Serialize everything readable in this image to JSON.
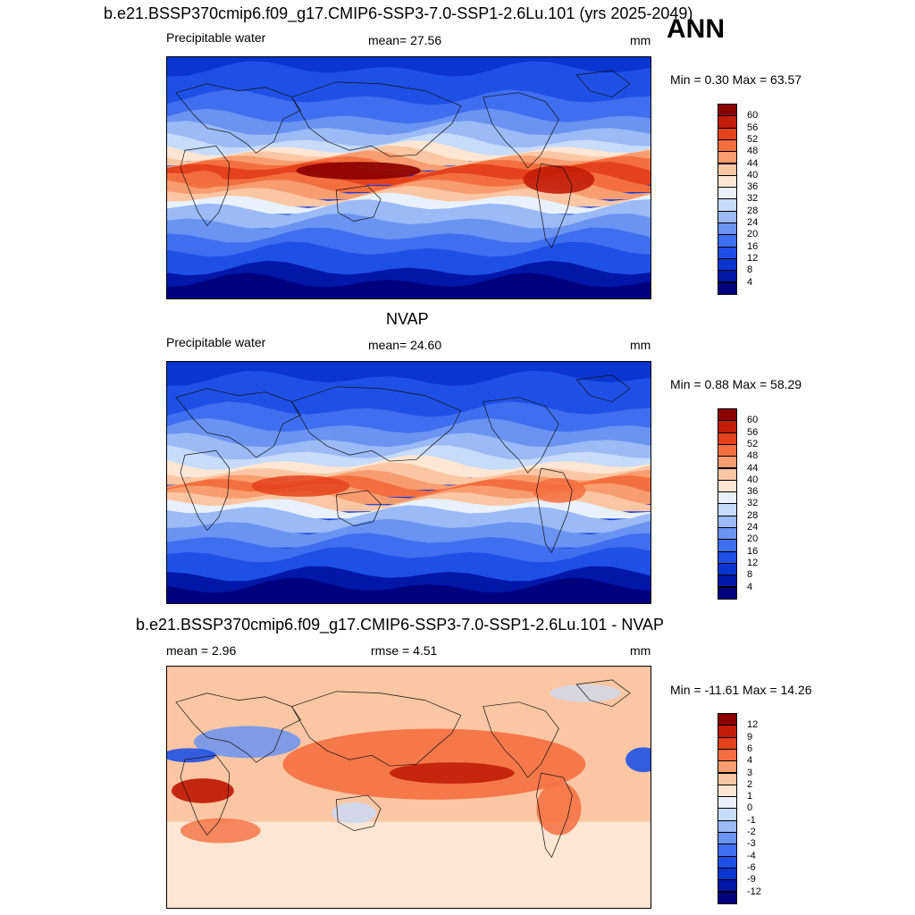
{
  "season": "ANN",
  "panels": [
    {
      "title": "b.e21.BSSP370cmip6.f09_g17.CMIP6-SSP3-7.0-SSP1-2.6Lu.101 (yrs 2025-2049)",
      "left_label": "Precipitable water",
      "center_label": "mean=  27.56",
      "units": "mm",
      "minmax": "Min =   0.30 Max =  63.57"
    },
    {
      "title": "NVAP",
      "left_label": "Precipitable water",
      "center_label": "mean=  24.60",
      "units": "mm",
      "minmax": "Min =   0.88 Max =  58.29"
    },
    {
      "title": "b.e21.BSSP370cmip6.f09_g17.CMIP6-SSP3-7.0-SSP1-2.6Lu.101 - NVAP",
      "left_label": "mean =   2.96",
      "center_label": "rmse =   4.51",
      "units": "mm",
      "minmax": "Min = -11.61 Max =  14.26"
    }
  ],
  "chart_data": [
    {
      "type": "heatmap",
      "title": "b.e21.BSSP370cmip6.f09_g17.CMIP6-SSP3-7.0-SSP1-2.6Lu.101 (yrs 2025-2049)",
      "variable": "Precipitable water",
      "units": "mm",
      "mean": 27.56,
      "min": 0.3,
      "max": 63.57,
      "levels": [
        4,
        8,
        12,
        16,
        20,
        24,
        28,
        32,
        36,
        40,
        44,
        48,
        52,
        56,
        60
      ],
      "colors": [
        "#00007f",
        "#0017a8",
        "#0a35d0",
        "#1e50e6",
        "#3f6ef0",
        "#6a93f2",
        "#9bbaf6",
        "#c7dbfa",
        "#e8f1fd",
        "#fde6d4",
        "#fbc6a3",
        "#f89d70",
        "#f46f40",
        "#e4421c",
        "#c21d08",
        "#8a0000"
      ]
    },
    {
      "type": "heatmap",
      "title": "NVAP",
      "variable": "Precipitable water",
      "units": "mm",
      "mean": 24.6,
      "min": 0.88,
      "max": 58.29,
      "levels": [
        4,
        8,
        12,
        16,
        20,
        24,
        28,
        32,
        36,
        40,
        44,
        48,
        52,
        56,
        60
      ],
      "colors": [
        "#00007f",
        "#0017a8",
        "#0a35d0",
        "#1e50e6",
        "#3f6ef0",
        "#6a93f2",
        "#9bbaf6",
        "#c7dbfa",
        "#e8f1fd",
        "#fde6d4",
        "#fbc6a3",
        "#f89d70",
        "#f46f40",
        "#e4421c",
        "#c21d08",
        "#8a0000"
      ]
    },
    {
      "type": "heatmap",
      "title": "b.e21.BSSP370cmip6.f09_g17.CMIP6-SSP3-7.0-SSP1-2.6Lu.101 - NVAP",
      "units": "mm",
      "mean": 2.96,
      "rmse": 4.51,
      "min": -11.61,
      "max": 14.26,
      "levels": [
        -12,
        -9,
        -6,
        -4,
        -3,
        -2,
        -1,
        0,
        1,
        2,
        3,
        4,
        6,
        9,
        12
      ],
      "colors": [
        "#00007f",
        "#0017a8",
        "#0a35d0",
        "#1e50e6",
        "#3f6ef0",
        "#6a93f2",
        "#9bbaf6",
        "#c7dbfa",
        "#e8f1fd",
        "#fde6d4",
        "#fbc6a3",
        "#f89d70",
        "#f46f40",
        "#e4421c",
        "#c21d08",
        "#8a0000"
      ]
    }
  ]
}
